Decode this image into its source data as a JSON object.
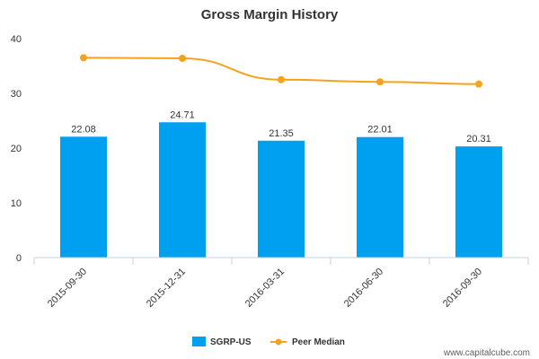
{
  "chart_data": {
    "type": "bar",
    "title": "Gross Margin History",
    "categories": [
      "2015-09-30",
      "2015-12-31",
      "2016-03-31",
      "2016-06-30",
      "2016-09-30"
    ],
    "series": [
      {
        "name": "SGRP-US",
        "kind": "bar",
        "color": "#00a0f0",
        "values": [
          22.08,
          24.71,
          21.35,
          22.01,
          20.31
        ],
        "labels": [
          "22.08",
          "24.71",
          "21.35",
          "22.01",
          "20.31"
        ]
      },
      {
        "name": "Peer Median",
        "kind": "line",
        "color": "#f7a21c",
        "values": [
          36.5,
          36.4,
          32.5,
          32.1,
          31.7
        ]
      }
    ],
    "ylim": [
      0,
      40
    ],
    "yticks": [
      "0",
      "10",
      "20",
      "30",
      "40"
    ],
    "xlabel": "",
    "ylabel": "",
    "legend_position": "bottom-center"
  },
  "source_text": "www.capitalcube.com"
}
